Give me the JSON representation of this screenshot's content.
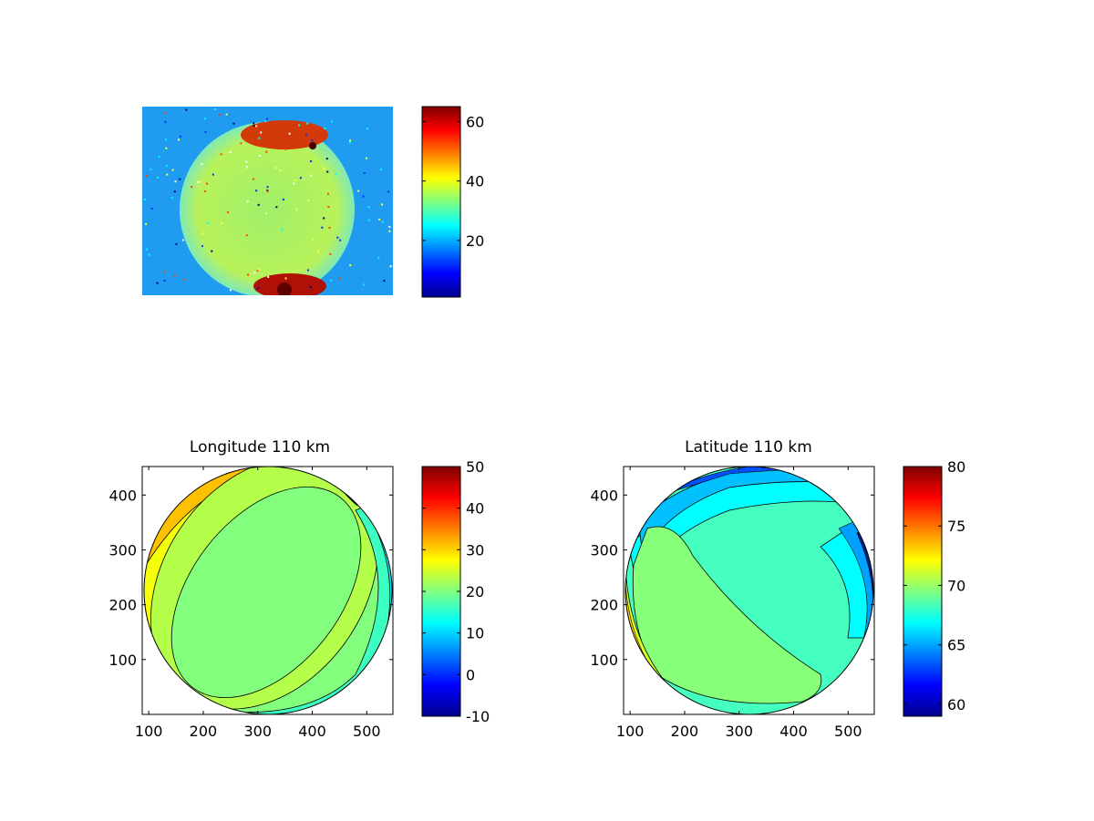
{
  "colormap": "jet",
  "chart_data": [
    {
      "type": "heatmap",
      "title": "",
      "axes_visible": false,
      "colorbar": {
        "range": [
          1,
          65
        ],
        "ticks": [
          20,
          40,
          60
        ]
      },
      "description_visible": "detector image with bright disk and hot spots at top and bottom",
      "mark_count": 0
    },
    {
      "type": "heatmap",
      "title": "Longitude 110 km",
      "xticks": [
        100,
        200,
        300,
        400,
        500
      ],
      "yticks": [
        100,
        200,
        300,
        400
      ],
      "xlim": [
        88,
        548
      ],
      "ylim": [
        0,
        452
      ],
      "colorbar": {
        "range": [
          -10,
          50
        ],
        "ticks": [
          -10,
          0,
          10,
          20,
          30,
          40,
          50
        ]
      }
    },
    {
      "type": "heatmap",
      "title": "Latitude 110 km",
      "xticks": [
        100,
        200,
        300,
        400,
        500
      ],
      "yticks": [
        100,
        200,
        300,
        400
      ],
      "xlim": [
        88,
        548
      ],
      "ylim": [
        0,
        452
      ],
      "colorbar": {
        "range": [
          59,
          80
        ],
        "ticks": [
          60,
          65,
          70,
          75,
          80
        ]
      }
    }
  ]
}
